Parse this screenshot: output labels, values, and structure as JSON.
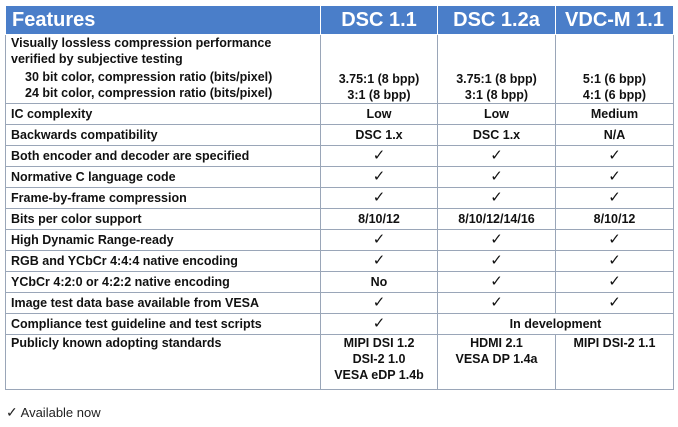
{
  "header": {
    "feature": "Features",
    "col1": "DSC 1.1",
    "col2": "DSC 1.2a",
    "col3": "VDC-M 1.1"
  },
  "check_glyph": "✓",
  "rows": {
    "compression": {
      "label_line1": "Visually lossless compression performance",
      "label_line2": "verified by subjective testing",
      "sub1_label": "30 bit color, compression ratio (bits/pixel)",
      "sub2_label": "24 bit color, compression ratio (bits/pixel)",
      "sub1_values": [
        "3.75:1 (8 bpp)",
        "3.75:1 (8 bpp)",
        "5:1 (6 bpp)"
      ],
      "sub2_values": [
        "3:1 (8 bpp)",
        "3:1 (8 bpp)",
        "4:1 (6 bpp)"
      ]
    },
    "ic_complexity": {
      "label": "IC complexity",
      "values": [
        "Low",
        "Low",
        "Medium"
      ]
    },
    "backwards": {
      "label": "Backwards compatibility",
      "values": [
        "DSC 1.x",
        "DSC 1.x",
        "N/A"
      ]
    },
    "encoder_decoder": {
      "label": "Both encoder and decoder are specified",
      "values": [
        "✓",
        "✓",
        "✓"
      ]
    },
    "c_code": {
      "label": "Normative C language code",
      "values": [
        "✓",
        "✓",
        "✓"
      ]
    },
    "frame": {
      "label": "Frame-by-frame compression",
      "values": [
        "✓",
        "✓",
        "✓"
      ]
    },
    "bpc": {
      "label": "Bits per color support",
      "values": [
        "8/10/12",
        "8/10/12/14/16",
        "8/10/12"
      ]
    },
    "hdr": {
      "label": "High Dynamic Range-ready",
      "values": [
        "✓",
        "✓",
        "✓"
      ]
    },
    "rgb444": {
      "label": "RGB and YCbCr 4:4:4 native encoding",
      "values": [
        "✓",
        "✓",
        "✓"
      ]
    },
    "ycbcr420": {
      "label": "YCbCr 4:2:0 or 4:2:2 native encoding",
      "values": [
        "No",
        "✓",
        "✓"
      ]
    },
    "image_db": {
      "label": "Image test data base available from VESA",
      "values": [
        "✓",
        "✓",
        "✓"
      ]
    },
    "compliance": {
      "label": "Compliance test guideline and test scripts",
      "value1": "✓",
      "value_span": "In development"
    },
    "standards": {
      "label": "Publicly known adopting standards",
      "col1": [
        "MIPI DSI 1.2",
        "DSI-2 1.0",
        "VESA eDP 1.4b"
      ],
      "col2": [
        "HDMI 2.1",
        "VESA DP 1.4a"
      ],
      "col3": [
        "MIPI DSI-2 1.1"
      ]
    }
  },
  "footnote": {
    "glyph": "✓",
    "text": "Available now"
  }
}
